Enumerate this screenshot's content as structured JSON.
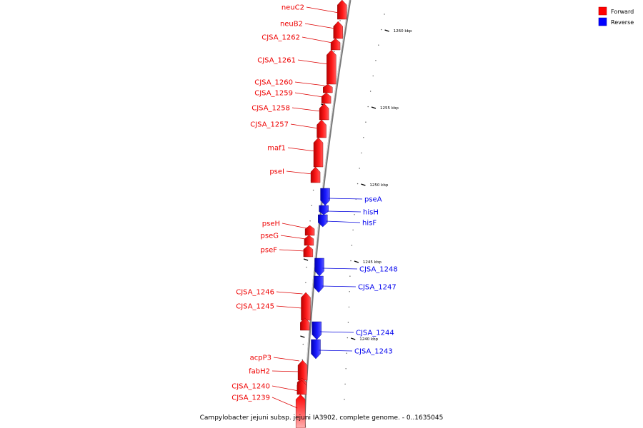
{
  "title": "Campylobacter jejuni subsp. jejuni IA3902, complete genome. - 0..1635045",
  "colors": {
    "forward": "#ff0000",
    "reverse": "#0000ff",
    "backbone": "#888888"
  },
  "legend": [
    {
      "label": "Forward",
      "color": "#ff0000"
    },
    {
      "label": "Reverse",
      "color": "#0000ff"
    }
  ],
  "scale_ticks": [
    {
      "label": "1260 kbp"
    },
    {
      "label": "1255 kbp"
    },
    {
      "label": "1250 kbp"
    },
    {
      "label": "1245 kbp"
    },
    {
      "label": "1240 kbp"
    }
  ],
  "forward_genes": [
    {
      "label": "neuC2"
    },
    {
      "label": "neuB2"
    },
    {
      "label": "CJSA_1262"
    },
    {
      "label": "CJSA_1261"
    },
    {
      "label": "CJSA_1260"
    },
    {
      "label": "CJSA_1259"
    },
    {
      "label": "CJSA_1258"
    },
    {
      "label": "CJSA_1257"
    },
    {
      "label": "maf1"
    },
    {
      "label": "pseI"
    },
    {
      "label": "pseH"
    },
    {
      "label": "pseG"
    },
    {
      "label": "pseF"
    },
    {
      "label": "CJSA_1246"
    },
    {
      "label": "CJSA_1245"
    },
    {
      "label": "acpP3"
    },
    {
      "label": "fabH2"
    },
    {
      "label": "CJSA_1240"
    },
    {
      "label": "CJSA_1239"
    }
  ],
  "reverse_genes": [
    {
      "label": "pseA"
    },
    {
      "label": "hisH"
    },
    {
      "label": "hisF"
    },
    {
      "label": "CJSA_1248"
    },
    {
      "label": "CJSA_1247"
    },
    {
      "label": "CJSA_1244"
    },
    {
      "label": "CJSA_1243"
    }
  ]
}
